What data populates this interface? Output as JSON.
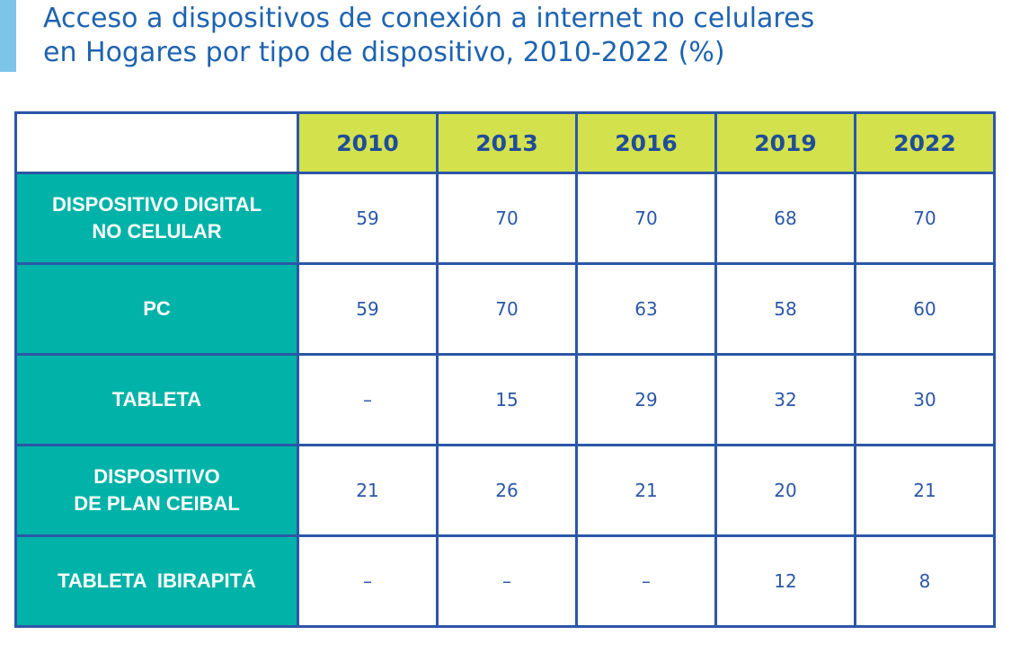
{
  "title": {
    "line1": "Acceso a dispositivos de conexión a internet no celulares",
    "line2": "en Hogares por tipo de dispositivo, 2010-2022 (%)"
  },
  "colors": {
    "accent_bar": "#7cc4e8",
    "title_text": "#1e63b0",
    "header_fill": "#d3e14d",
    "row_label_fill": "#00b2a7",
    "border": "#2b57a8",
    "value_text": "#2b57a8"
  },
  "table": {
    "years": [
      "2010",
      "2013",
      "2016",
      "2019",
      "2022"
    ],
    "rows": [
      {
        "label_lines": [
          "DISPOSITIVO DIGITAL",
          "NO CELULAR"
        ],
        "values": [
          "59",
          "70",
          "70",
          "68",
          "70"
        ]
      },
      {
        "label_lines": [
          "PC"
        ],
        "values": [
          "59",
          "70",
          "63",
          "58",
          "60"
        ]
      },
      {
        "label_lines": [
          "TABLETA"
        ],
        "values": [
          "–",
          "15",
          "29",
          "32",
          "30"
        ]
      },
      {
        "label_lines": [
          "DISPOSITIVO",
          "DE PLAN CEIBAL"
        ],
        "values": [
          "21",
          "26",
          "21",
          "20",
          "21"
        ]
      },
      {
        "label_lines": [
          "TABLETA  IBIRAPITÁ"
        ],
        "values": [
          "–",
          "–",
          "–",
          "12",
          "8"
        ]
      }
    ]
  }
}
